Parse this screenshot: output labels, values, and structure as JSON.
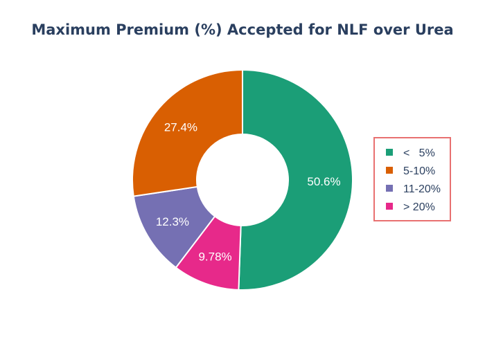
{
  "chart_data": {
    "type": "pie",
    "hole": true,
    "title": "Maximum Premium (%) Accepted for NLF over Urea",
    "categories": [
      "<   5%",
      "5-10%",
      "11-20%",
      "> 20%"
    ],
    "values": [
      50.6,
      27.4,
      12.3,
      9.78
    ],
    "labels": [
      "50.6%",
      "27.4%",
      "12.3%",
      "9.78%"
    ],
    "colors": [
      "#1b9e77",
      "#d95f02",
      "#7570b3",
      "#e7298a"
    ],
    "slice_order": [
      0,
      3,
      2,
      1
    ],
    "direction": "clockwise",
    "legend": {
      "placement": "right",
      "entries": [
        "<   5%",
        "5-10%",
        "11-20%",
        "> 20%"
      ],
      "border_color": "#e87070"
    }
  }
}
